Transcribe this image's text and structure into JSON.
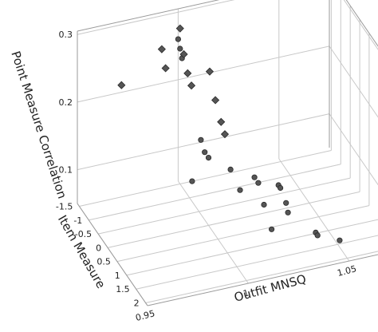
{
  "chart_data": {
    "type": "scatter3d",
    "title": "",
    "zlabel": "Point Measure Correlation",
    "ylabel": "Item Measure",
    "xlabel": "Outfit MNSQ",
    "z_ticks": [
      "0.3",
      "0.2",
      "0.1"
    ],
    "y_ticks": [
      "-1.5",
      "-1",
      "-0.5",
      "0",
      "0.5",
      "1",
      "1.5",
      "2"
    ],
    "x_ticks": [
      "0.95",
      "1",
      "1.05"
    ],
    "marker_color": "#555555",
    "grid": true,
    "series": [
      {
        "marker": "diamond",
        "points": [
          {
            "x": 1.0,
            "y": -1.5,
            "z": 0.28
          },
          {
            "x": 0.99,
            "y": -1.4,
            "z": 0.26
          },
          {
            "x": 1.0,
            "y": -1.3,
            "z": 0.25
          },
          {
            "x": 0.99,
            "y": -1.2,
            "z": 0.24
          },
          {
            "x": 1.0,
            "y": -1.1,
            "z": 0.23
          },
          {
            "x": 1.01,
            "y": -1.0,
            "z": 0.23
          },
          {
            "x": 1.0,
            "y": -0.9,
            "z": 0.22
          },
          {
            "x": 0.97,
            "y": -1.4,
            "z": 0.22
          },
          {
            "x": 1.01,
            "y": -0.7,
            "z": 0.2
          },
          {
            "x": 1.01,
            "y": -0.4,
            "z": 0.18
          },
          {
            "x": 1.01,
            "y": -0.2,
            "z": 0.17
          }
        ]
      },
      {
        "marker": "circle",
        "points": [
          {
            "x": 1.0,
            "y": -1.6,
            "z": 0.26
          },
          {
            "x": 1.0,
            "y": -1.5,
            "z": 0.25
          },
          {
            "x": 1.0,
            "y": -1.4,
            "z": 0.24
          },
          {
            "x": 1.0,
            "y": -0.4,
            "z": 0.16
          },
          {
            "x": 1.0,
            "y": -0.2,
            "z": 0.15
          },
          {
            "x": 1.0,
            "y": 0.0,
            "z": 0.15
          },
          {
            "x": 0.99,
            "y": 0.2,
            "z": 0.13
          },
          {
            "x": 1.01,
            "y": 0.1,
            "z": 0.13
          },
          {
            "x": 1.02,
            "y": 0.3,
            "z": 0.12
          },
          {
            "x": 1.02,
            "y": 0.5,
            "z": 0.12
          },
          {
            "x": 1.03,
            "y": 0.5,
            "z": 0.11
          },
          {
            "x": 1.03,
            "y": 0.6,
            "z": 0.11
          },
          {
            "x": 1.01,
            "y": 0.6,
            "z": 0.12
          },
          {
            "x": 1.02,
            "y": 0.8,
            "z": 0.1
          },
          {
            "x": 1.03,
            "y": 0.9,
            "z": 0.1
          },
          {
            "x": 1.03,
            "y": 1.0,
            "z": 0.09
          },
          {
            "x": 1.02,
            "y": 1.2,
            "z": 0.08
          },
          {
            "x": 1.04,
            "y": 1.4,
            "z": 0.07
          },
          {
            "x": 1.04,
            "y": 1.5,
            "z": 0.07
          },
          {
            "x": 1.05,
            "y": 1.6,
            "z": 0.06
          },
          {
            "x": 1.07,
            "y": 1.8,
            "z": 0.05
          }
        ]
      }
    ]
  }
}
